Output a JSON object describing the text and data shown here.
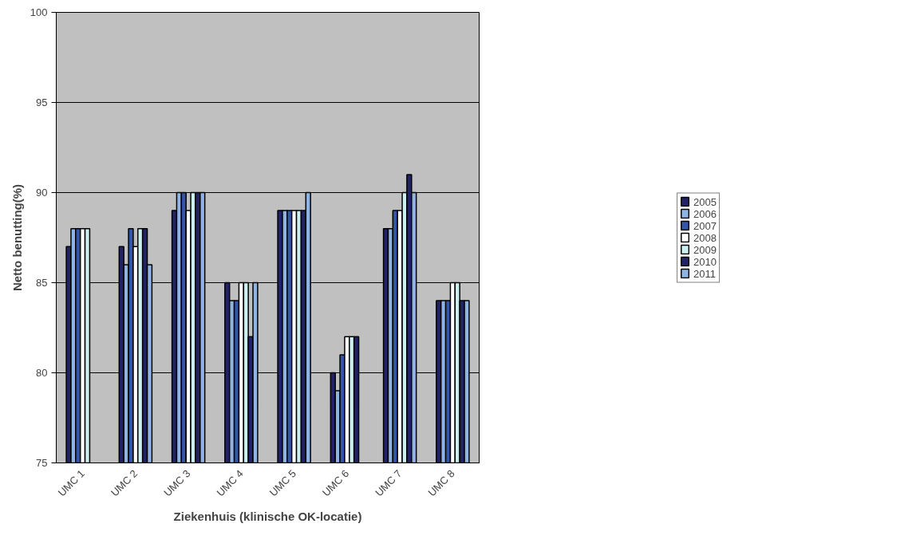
{
  "chart_data": {
    "type": "bar",
    "xlabel": "Ziekenhuis (klinische OK-locatie)",
    "ylabel": "Netto benutting(%)",
    "categories": [
      "UMC 1",
      "UMC 2",
      "UMC 3",
      "UMC 4",
      "UMC 5",
      "UMC 6",
      "UMC 7",
      "UMC 8"
    ],
    "series": [
      {
        "name": "2005",
        "color": "#222266",
        "values": [
          87,
          87,
          89,
          85,
          89,
          80,
          88,
          84
        ]
      },
      {
        "name": "2006",
        "color": "#8fb4e3",
        "values": [
          88,
          86,
          90,
          84,
          89,
          79,
          88,
          84
        ]
      },
      {
        "name": "2007",
        "color": "#3355aa",
        "values": [
          88,
          88,
          90,
          84,
          89,
          81,
          89,
          84
        ]
      },
      {
        "name": "2008",
        "color": "#ffffff",
        "values": [
          88,
          87,
          89,
          85,
          89,
          82,
          89,
          85
        ]
      },
      {
        "name": "2009",
        "color": "#ccf0f0",
        "values": [
          88,
          88,
          90,
          85,
          89,
          82,
          90,
          85
        ]
      },
      {
        "name": "2010",
        "color": "#222266",
        "values": [
          null,
          88,
          90,
          82,
          89,
          82,
          91,
          84
        ]
      },
      {
        "name": "2011",
        "color": "#8fb4e3",
        "values": [
          null,
          86,
          90,
          85,
          90,
          null,
          90,
          84
        ]
      }
    ],
    "ylim": [
      75,
      100
    ],
    "yticks": [
      75,
      80,
      85,
      90,
      95,
      100
    ],
    "grid": "y",
    "legend": "right"
  }
}
